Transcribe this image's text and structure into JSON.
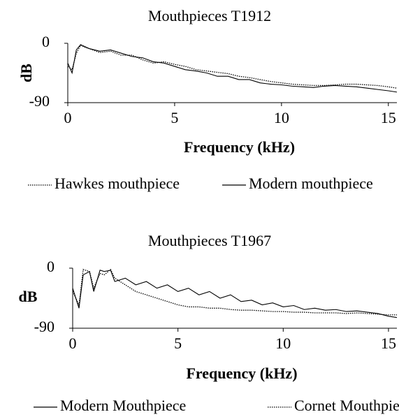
{
  "chart_data": [
    {
      "type": "line",
      "title": "Mouthpieces T1912",
      "xlabel": "Frequency (kHz)",
      "ylabel": "dB",
      "x": [
        0,
        0.2,
        0.4,
        0.6,
        0.8,
        1,
        1.5,
        2,
        2.5,
        3,
        3.5,
        4,
        4.5,
        5,
        5.5,
        6,
        6.5,
        7,
        7.5,
        8,
        8.5,
        9,
        9.5,
        10,
        10.5,
        11,
        11.5,
        12,
        12.5,
        13,
        13.5,
        14,
        14.5,
        15,
        15.4
      ],
      "series": [
        {
          "name": "Hawkes mouthpiece",
          "color": "#000000",
          "style": "dotted",
          "values": [
            -35,
            -40,
            -15,
            -3,
            -6,
            -8,
            -14,
            -12,
            -18,
            -18,
            -25,
            -30,
            -28,
            -32,
            -35,
            -40,
            -42,
            -44,
            -46,
            -50,
            -52,
            -55,
            -58,
            -60,
            -62,
            -63,
            -64,
            -64,
            -63,
            -62,
            -62,
            -63,
            -64,
            -66,
            -68
          ]
        },
        {
          "name": "Modern mouthpiece",
          "color": "#000000",
          "style": "solid",
          "values": [
            -30,
            -45,
            -10,
            -2,
            -5,
            -8,
            -12,
            -10,
            -15,
            -20,
            -22,
            -28,
            -30,
            -35,
            -40,
            -42,
            -45,
            -50,
            -50,
            -55,
            -55,
            -60,
            -62,
            -63,
            -65,
            -66,
            -67,
            -65,
            -64,
            -65,
            -66,
            -68,
            -70,
            -72,
            -74
          ]
        }
      ],
      "xlim": [
        0,
        15.4
      ],
      "ylim": [
        -90,
        0
      ],
      "xticks": [
        0,
        5,
        10,
        15
      ],
      "yticks": [
        -90,
        0
      ],
      "grid": false
    },
    {
      "type": "line",
      "title": "Mouthpieces T1967",
      "xlabel": "Frequency (kHz)",
      "ylabel": "dB",
      "x": [
        0,
        0.3,
        0.5,
        0.8,
        1,
        1.3,
        1.5,
        1.8,
        2,
        2.5,
        3,
        3.5,
        4,
        4.5,
        5,
        5.5,
        6,
        6.5,
        7,
        7.5,
        8,
        8.5,
        9,
        9.5,
        10,
        10.5,
        11,
        11.5,
        12,
        12.5,
        13,
        13.5,
        14,
        14.5,
        15,
        15.4
      ],
      "series": [
        {
          "name": "Modern Mouthpiece",
          "color": "#000000",
          "style": "solid",
          "values": [
            -30,
            -60,
            -10,
            -5,
            -35,
            -3,
            -5,
            -3,
            -20,
            -15,
            -25,
            -20,
            -30,
            -25,
            -35,
            -30,
            -40,
            -35,
            -45,
            -40,
            -50,
            -48,
            -55,
            -52,
            -58,
            -56,
            -62,
            -60,
            -63,
            -62,
            -65,
            -64,
            -66,
            -68,
            -72,
            -74
          ]
        },
        {
          "name": "Cornet Mouthpiece",
          "color": "#000000",
          "style": "dotted",
          "values": [
            -35,
            -55,
            -2,
            -5,
            -30,
            -8,
            -10,
            -2,
            -15,
            -25,
            -35,
            -40,
            -45,
            -50,
            -55,
            -58,
            -58,
            -60,
            -60,
            -62,
            -63,
            -63,
            -64,
            -65,
            -65,
            -66,
            -66,
            -67,
            -67,
            -67,
            -68,
            -67,
            -68,
            -69,
            -70,
            -70
          ]
        }
      ],
      "xlim": [
        0,
        15.4
      ],
      "ylim": [
        -90,
        0
      ],
      "xticks": [
        0,
        5,
        10,
        15
      ],
      "yticks": [
        -90,
        0
      ],
      "grid": false
    }
  ]
}
